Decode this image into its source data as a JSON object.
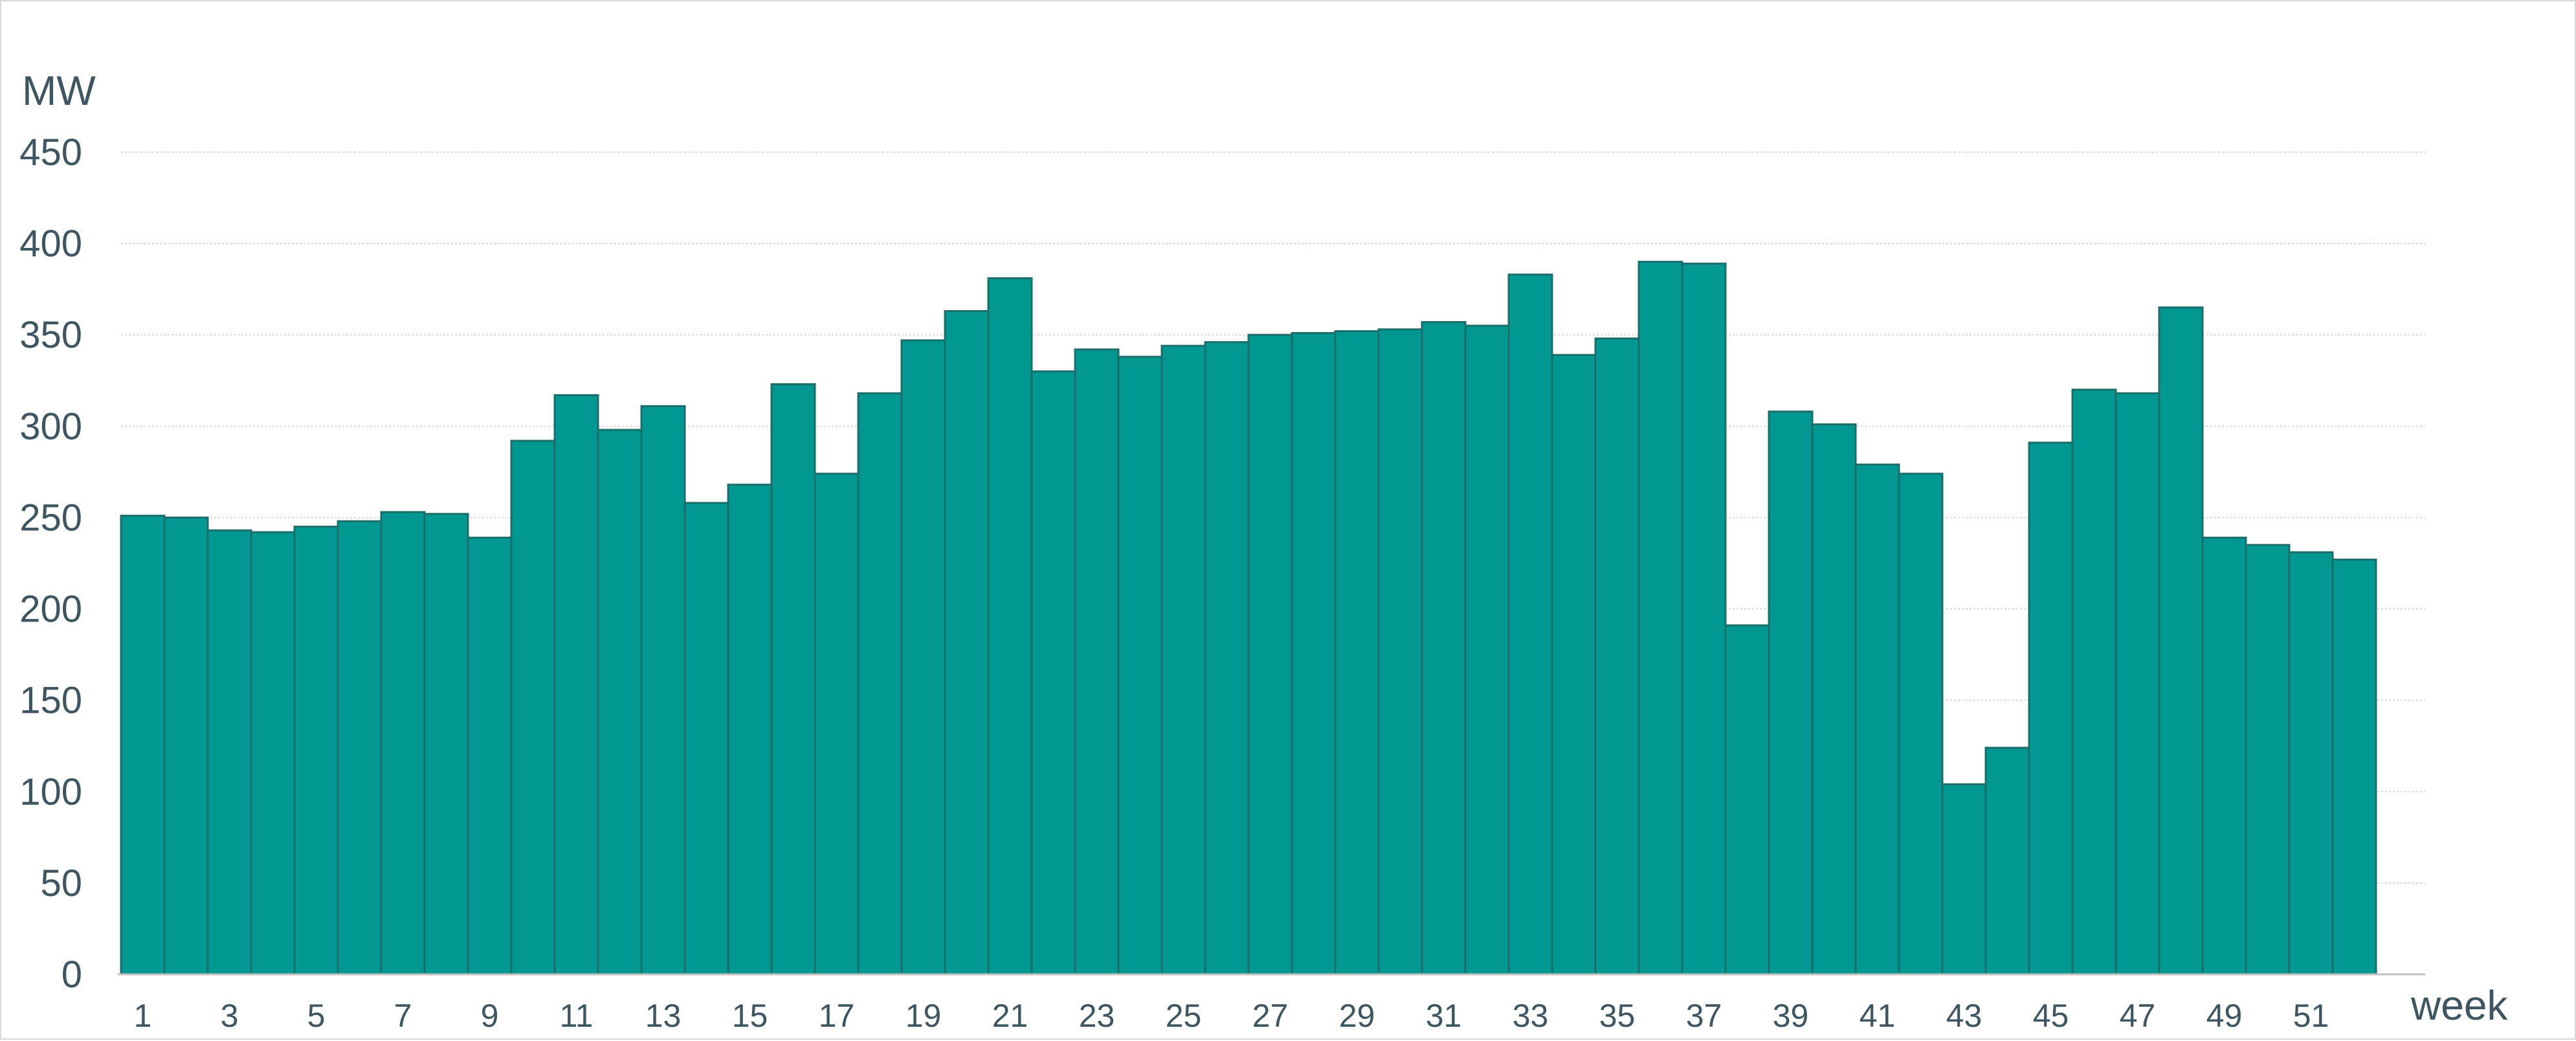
{
  "chart_data": {
    "type": "bar",
    "ylabel": "MW",
    "xlabel": "week",
    "ylim": [
      0,
      450
    ],
    "yticks": [
      0,
      50,
      100,
      150,
      200,
      250,
      300,
      350,
      400,
      450
    ],
    "grid": true,
    "bar_color": "#009891",
    "categories": [
      "1",
      "2",
      "3",
      "4",
      "5",
      "6",
      "7",
      "8",
      "9",
      "10",
      "11",
      "12",
      "13",
      "14",
      "15",
      "16",
      "17",
      "18",
      "19",
      "20",
      "21",
      "22",
      "23",
      "24",
      "25",
      "26",
      "27",
      "28",
      "29",
      "30",
      "31",
      "32",
      "33",
      "34",
      "35",
      "36",
      "37",
      "38",
      "39",
      "40",
      "41",
      "42",
      "43",
      "44",
      "45",
      "46",
      "47",
      "48",
      "49",
      "50",
      "51",
      "52"
    ],
    "visible_xtick_labels": [
      "1",
      "3",
      "5",
      "7",
      "9",
      "11",
      "13",
      "15",
      "17",
      "19",
      "21",
      "23",
      "25",
      "27",
      "29",
      "31",
      "33",
      "35",
      "37",
      "39",
      "41",
      "43",
      "45",
      "47",
      "49",
      "51"
    ],
    "values": [
      251,
      250,
      243,
      242,
      245,
      248,
      253,
      252,
      239,
      292,
      317,
      298,
      311,
      258,
      268,
      323,
      274,
      318,
      347,
      363,
      381,
      330,
      342,
      338,
      344,
      346,
      350,
      351,
      352,
      353,
      357,
      355,
      383,
      339,
      348,
      390,
      389,
      191,
      308,
      301,
      279,
      274,
      104,
      124,
      291,
      320,
      318,
      365,
      239,
      235,
      231,
      227
    ]
  }
}
